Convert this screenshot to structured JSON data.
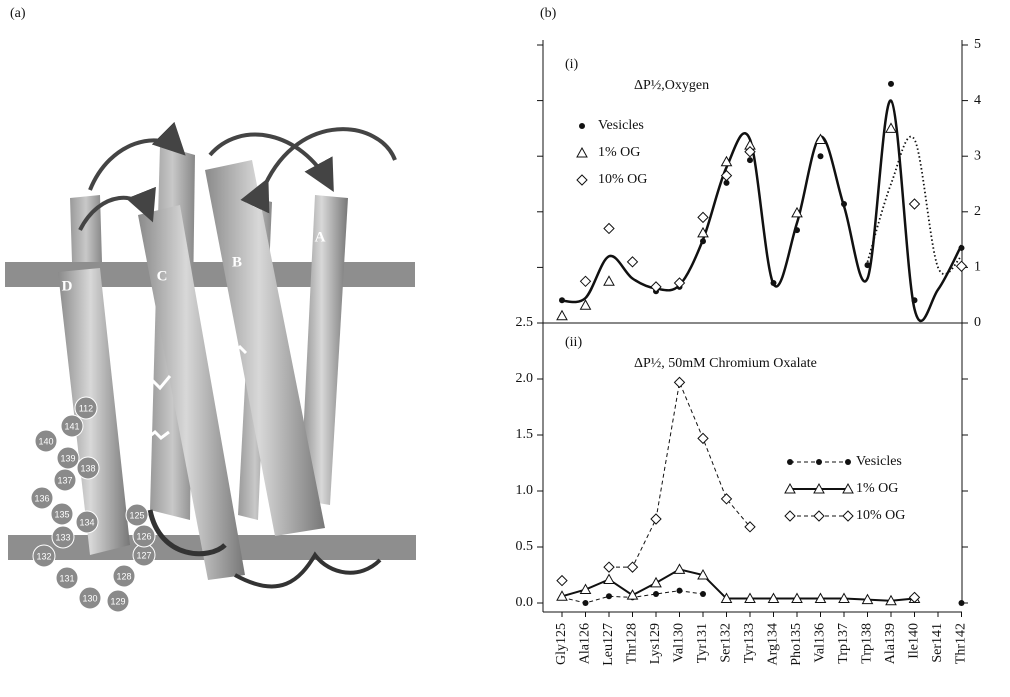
{
  "figure_labels": {
    "a": "(a)",
    "b": "(b)"
  },
  "diagram": {
    "helices": [
      "D",
      "C",
      "B",
      "A"
    ],
    "residues": [
      "112",
      "141",
      "140",
      "139",
      "138",
      "137",
      "136",
      "135",
      "134",
      "133",
      "132",
      "131",
      "130",
      "129",
      "128",
      "127",
      "126",
      "125"
    ]
  },
  "chart_data": [
    {
      "type": "scatter",
      "panel": "(i)",
      "title": "ΔP½,Oxygen",
      "ylim": [
        0,
        5
      ],
      "yticks": [
        0,
        1,
        2,
        3,
        4,
        5
      ],
      "legend": "upper left",
      "series": [
        {
          "name": "Vesicles",
          "marker": "dot",
          "color": "#111",
          "values": [
            0.41,
            0.3,
            null,
            null,
            0.57,
            0.65,
            1.47,
            2.52,
            2.93,
            0.72,
            1.67,
            3.0,
            2.14,
            1.04,
            4.3,
            0.41,
            null,
            1.35
          ]
        },
        {
          "name": "1% OG",
          "marker": "triangle",
          "color": "#111",
          "values": [
            0.13,
            0.32,
            0.75,
            null,
            null,
            null,
            1.62,
            2.9,
            3.2,
            null,
            1.98,
            3.3,
            null,
            null,
            3.5,
            null,
            null,
            null
          ]
        },
        {
          "name": "10% OG",
          "marker": "diamond",
          "color": "#111",
          "values": [
            null,
            0.75,
            1.7,
            1.1,
            0.65,
            0.72,
            1.9,
            2.65,
            3.08,
            null,
            null,
            null,
            null,
            null,
            null,
            2.14,
            null,
            1.02
          ]
        }
      ],
      "fit_curves": [
        {
          "style": "solid",
          "values": [
            0.4,
            0.45,
            1.2,
            0.8,
            0.62,
            0.68,
            1.5,
            2.8,
            3.3,
            0.7,
            1.8,
            3.35,
            2.1,
            0.8,
            4.0,
            0.25,
            0.6,
            1.4
          ]
        },
        {
          "style": "dotted",
          "values": [
            null,
            null,
            null,
            null,
            null,
            null,
            null,
            null,
            null,
            null,
            null,
            null,
            null,
            1.1,
            2.5,
            3.3,
            1.0,
            1.2
          ]
        }
      ]
    },
    {
      "type": "line",
      "panel": "(ii)",
      "title": "ΔP½, 50mM Chromium Oxalate",
      "categories": [
        "Gly125",
        "Ala126",
        "Leu127",
        "Thr128",
        "Lys129",
        "Val130",
        "Tyr131",
        "Ser132",
        "Tyr133",
        "Arg134",
        "Pho135",
        "Val136",
        "Trp137",
        "Trp138",
        "Ala139",
        "Ile140",
        "Ser141",
        "Thr142"
      ],
      "ylim": [
        0,
        2.5
      ],
      "yticks": [
        {
          "value": 0,
          "label": "0.0"
        },
        0.5,
        {
          "value": 1,
          "label": "1.0"
        },
        1.5,
        {
          "value": 2,
          "label": "2.0"
        },
        2.5
      ],
      "legend": "center right",
      "series": [
        {
          "name": "Vesicles",
          "marker": "dot",
          "dash": "4 3",
          "color": "#111",
          "values": [
            0.05,
            0.0,
            0.06,
            0.05,
            0.08,
            0.11,
            0.08,
            null,
            null,
            0.04,
            null,
            null,
            null,
            null,
            null,
            null,
            null,
            0.0
          ]
        },
        {
          "name": "1% OG",
          "marker": "triangle",
          "dash": "none",
          "color": "#111",
          "values": [
            0.06,
            0.12,
            0.21,
            0.07,
            0.18,
            0.3,
            0.25,
            0.04,
            0.04,
            0.04,
            0.04,
            0.04,
            0.04,
            0.03,
            0.02,
            0.04,
            null,
            null
          ]
        },
        {
          "name": "10% OG",
          "marker": "diamond",
          "dash": "4 3",
          "color": "#111",
          "values": [
            0.2,
            null,
            0.32,
            0.32,
            0.75,
            1.97,
            1.47,
            0.93,
            0.68,
            null,
            null,
            null,
            null,
            null,
            null,
            0.05,
            null,
            null
          ]
        }
      ]
    }
  ]
}
